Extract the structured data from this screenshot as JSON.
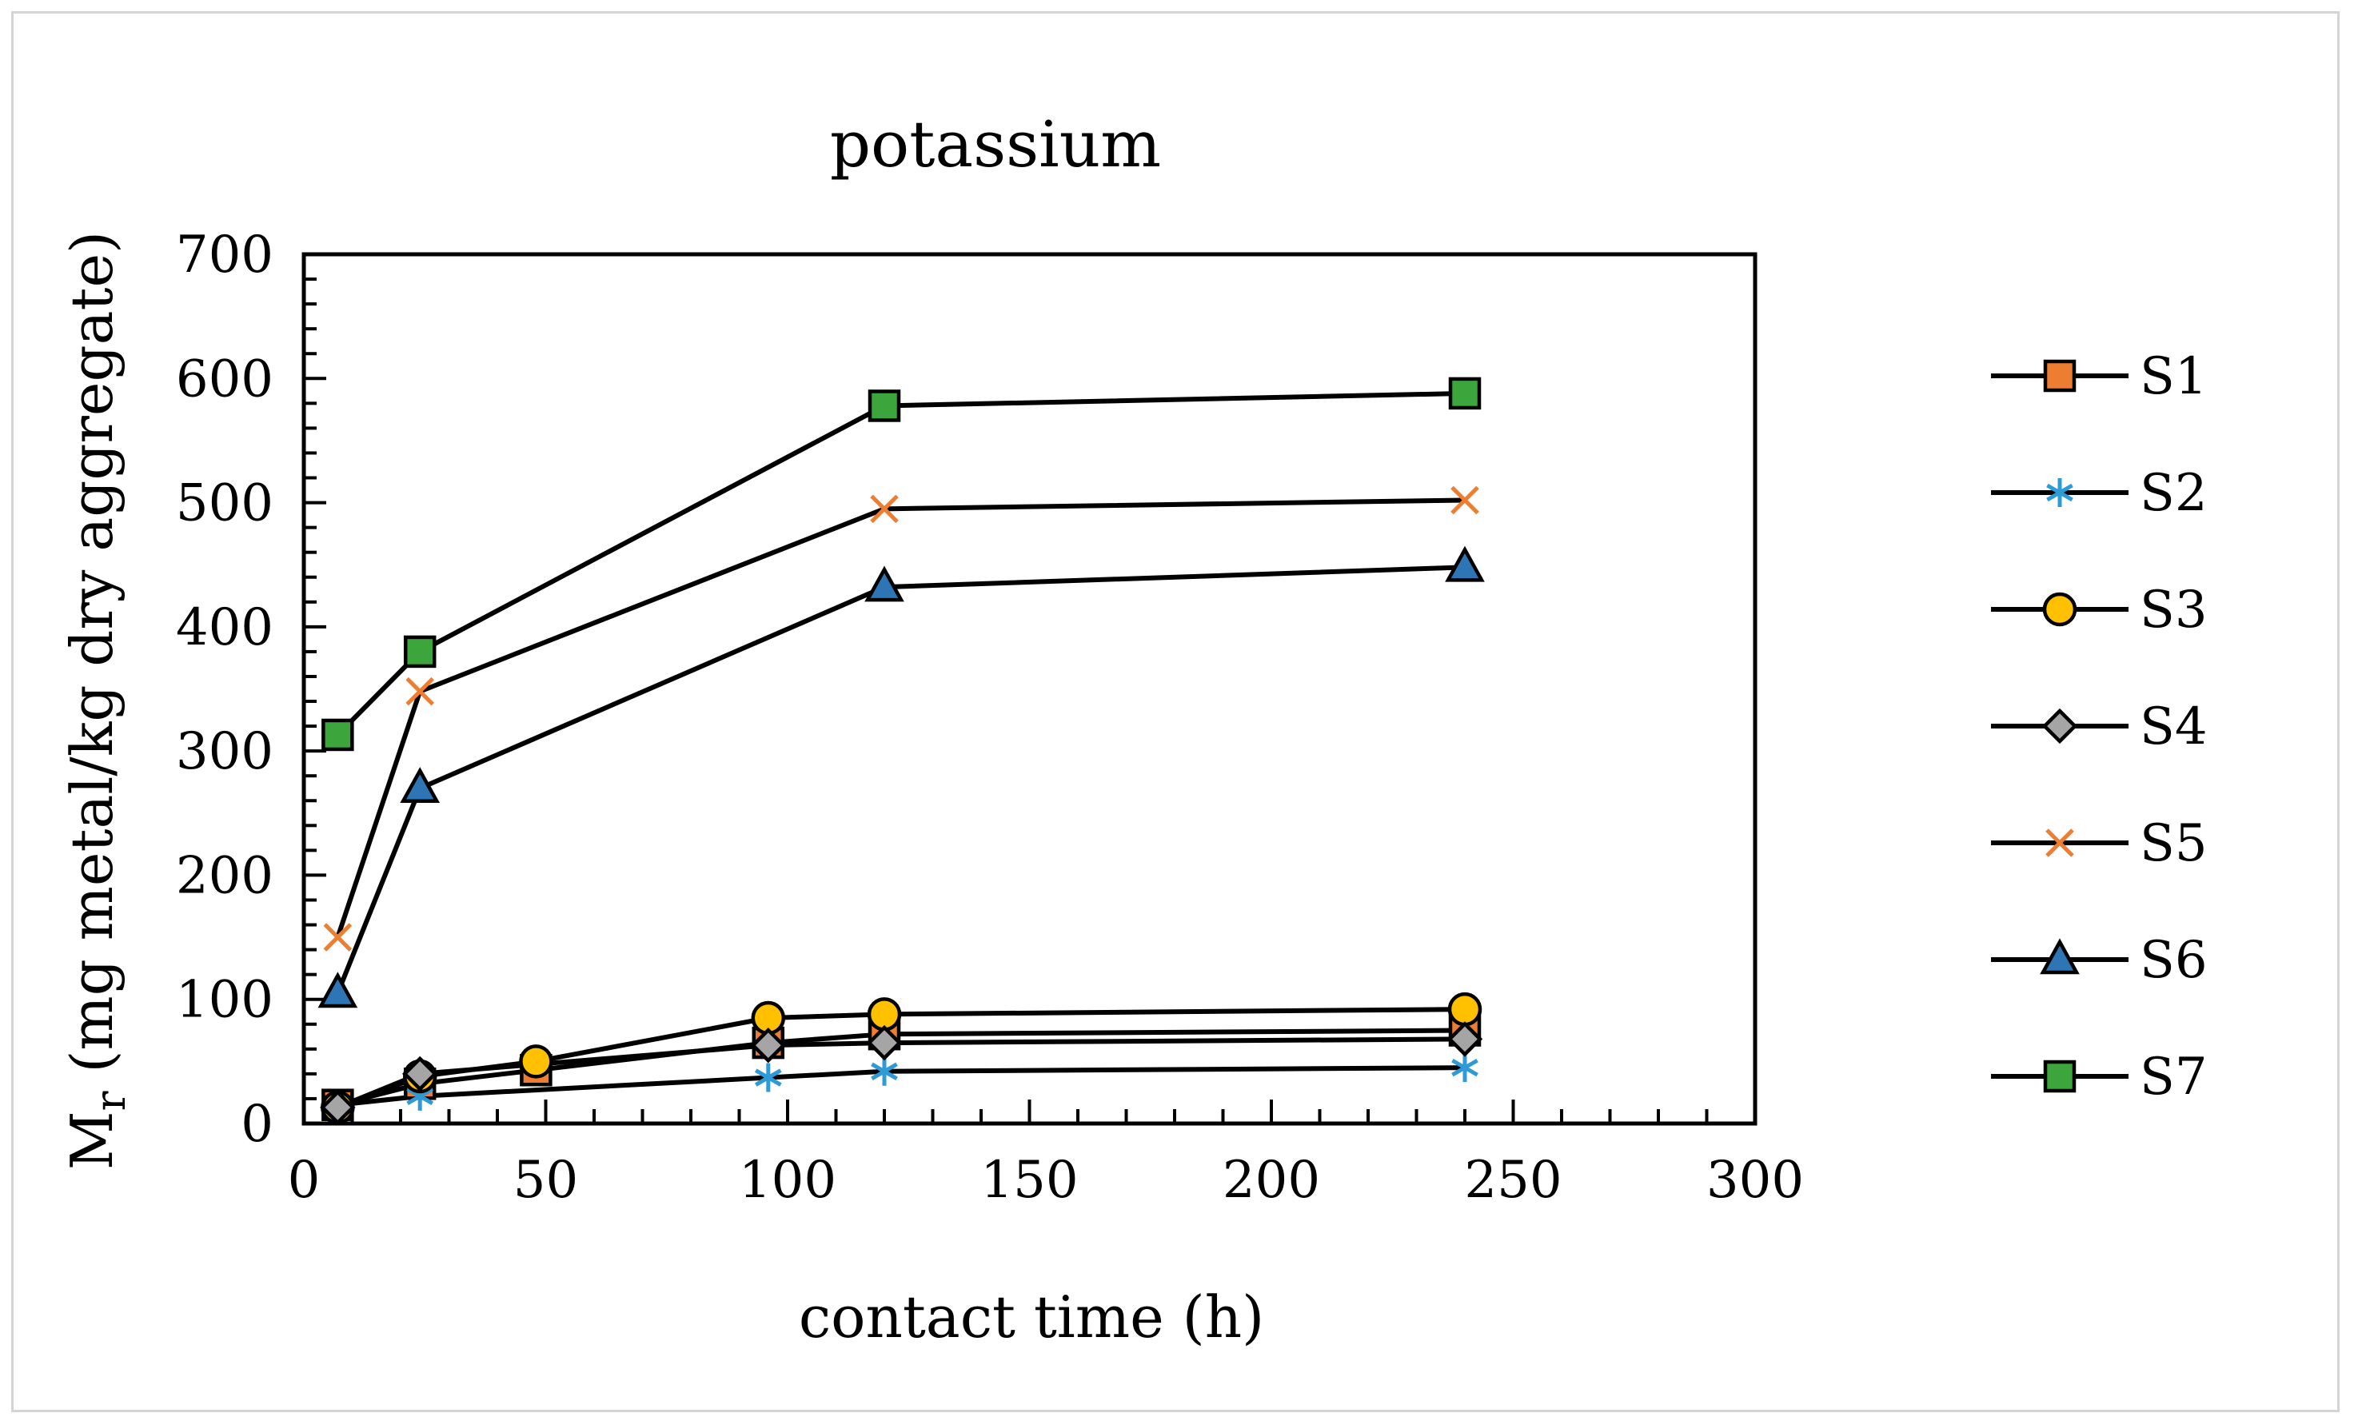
{
  "chart_data": {
    "type": "line",
    "title": "potassium",
    "xlabel": "contact time (h)",
    "ylabel_main": "M",
    "ylabel_sub": "r",
    "ylabel_rest": " (mg metal/kg dry aggregate)",
    "xlim": [
      0,
      300
    ],
    "ylim": [
      0,
      700
    ],
    "xticks": [
      0,
      50,
      100,
      150,
      200,
      250,
      300
    ],
    "yticks": [
      0,
      100,
      200,
      300,
      400,
      500,
      600,
      700
    ],
    "x_minor_step": 10,
    "y_minor_step": 20,
    "grid": false,
    "legend_position": "right",
    "series": [
      {
        "name": "S1",
        "marker": "square",
        "color": "#ED7D31",
        "x": [
          7,
          24,
          48,
          96,
          120,
          240
        ],
        "y": [
          15,
          32,
          43,
          65,
          72,
          75
        ]
      },
      {
        "name": "S2",
        "marker": "asterisk",
        "color": "#2E9BD6",
        "x": [
          7,
          24,
          96,
          120,
          240
        ],
        "y": [
          15,
          22,
          37,
          42,
          45
        ]
      },
      {
        "name": "S3",
        "marker": "circle",
        "color": "#FFC000",
        "x": [
          7,
          24,
          48,
          96,
          120,
          240
        ],
        "y": [
          13,
          38,
          50,
          85,
          88,
          92
        ]
      },
      {
        "name": "S4",
        "marker": "diamond",
        "color": "#A5A5A5",
        "x": [
          7,
          24,
          96,
          120,
          240
        ],
        "y": [
          13,
          40,
          63,
          65,
          68
        ]
      },
      {
        "name": "S5",
        "marker": "x",
        "color": "#ED7D31",
        "x": [
          7,
          24,
          120,
          240
        ],
        "y": [
          150,
          348,
          495,
          502
        ]
      },
      {
        "name": "S6",
        "marker": "triangle",
        "color": "#2E75B6",
        "x": [
          7,
          24,
          120,
          240
        ],
        "y": [
          105,
          270,
          432,
          448
        ]
      },
      {
        "name": "S7",
        "marker": "square",
        "color": "#3CA63C",
        "x": [
          7,
          24,
          120,
          240
        ],
        "y": [
          313,
          380,
          578,
          588
        ]
      }
    ]
  }
}
